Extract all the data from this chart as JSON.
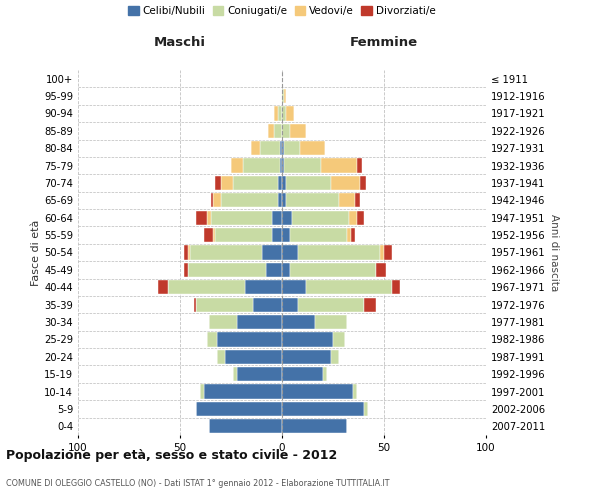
{
  "age_groups": [
    "0-4",
    "5-9",
    "10-14",
    "15-19",
    "20-24",
    "25-29",
    "30-34",
    "35-39",
    "40-44",
    "45-49",
    "50-54",
    "55-59",
    "60-64",
    "65-69",
    "70-74",
    "75-79",
    "80-84",
    "85-89",
    "90-94",
    "95-99",
    "100+"
  ],
  "birth_years": [
    "2007-2011",
    "2002-2006",
    "1997-2001",
    "1992-1996",
    "1987-1991",
    "1982-1986",
    "1977-1981",
    "1972-1976",
    "1967-1971",
    "1962-1966",
    "1957-1961",
    "1952-1956",
    "1947-1951",
    "1942-1946",
    "1937-1941",
    "1932-1936",
    "1927-1931",
    "1922-1926",
    "1917-1921",
    "1912-1916",
    "≤ 1911"
  ],
  "maschi": {
    "celibi": [
      36,
      42,
      38,
      22,
      28,
      32,
      22,
      14,
      18,
      8,
      10,
      5,
      5,
      2,
      2,
      1,
      1,
      0,
      0,
      0,
      0
    ],
    "coniugati": [
      0,
      0,
      2,
      2,
      4,
      5,
      14,
      28,
      38,
      38,
      35,
      28,
      30,
      28,
      22,
      18,
      10,
      4,
      2,
      0,
      0
    ],
    "vedovi": [
      0,
      0,
      0,
      0,
      0,
      0,
      0,
      0,
      0,
      0,
      1,
      1,
      2,
      4,
      6,
      6,
      4,
      3,
      2,
      0,
      0
    ],
    "divorziati": [
      0,
      0,
      0,
      0,
      0,
      0,
      0,
      1,
      5,
      2,
      2,
      4,
      5,
      1,
      3,
      0,
      0,
      0,
      0,
      0,
      0
    ]
  },
  "femmine": {
    "nubili": [
      32,
      40,
      35,
      20,
      24,
      25,
      16,
      8,
      12,
      4,
      8,
      4,
      5,
      2,
      2,
      1,
      1,
      0,
      0,
      0,
      0
    ],
    "coniugate": [
      0,
      2,
      2,
      2,
      4,
      6,
      16,
      32,
      42,
      42,
      40,
      28,
      28,
      26,
      22,
      18,
      8,
      4,
      2,
      1,
      0
    ],
    "vedove": [
      0,
      0,
      0,
      0,
      0,
      0,
      0,
      0,
      0,
      0,
      2,
      2,
      4,
      8,
      14,
      18,
      12,
      8,
      4,
      1,
      0
    ],
    "divorziate": [
      0,
      0,
      0,
      0,
      0,
      0,
      0,
      6,
      4,
      5,
      4,
      2,
      3,
      2,
      3,
      2,
      0,
      0,
      0,
      0,
      0
    ]
  },
  "colors": {
    "celibi_nubili": "#4472a8",
    "coniugati": "#c8dba4",
    "vedovi": "#f5c97a",
    "divorziati": "#c0392b"
  },
  "xlim": 100,
  "title": "Popolazione per età, sesso e stato civile - 2012",
  "subtitle": "COMUNE DI OLEGGIO CASTELLO (NO) - Dati ISTAT 1° gennaio 2012 - Elaborazione TUTTITALIA.IT",
  "ylabel_left": "Fasce di età",
  "ylabel_right": "Anni di nascita",
  "xlabel_left": "Maschi",
  "xlabel_right": "Femmine",
  "background_color": "#ffffff",
  "grid_color": "#bbbbbb"
}
